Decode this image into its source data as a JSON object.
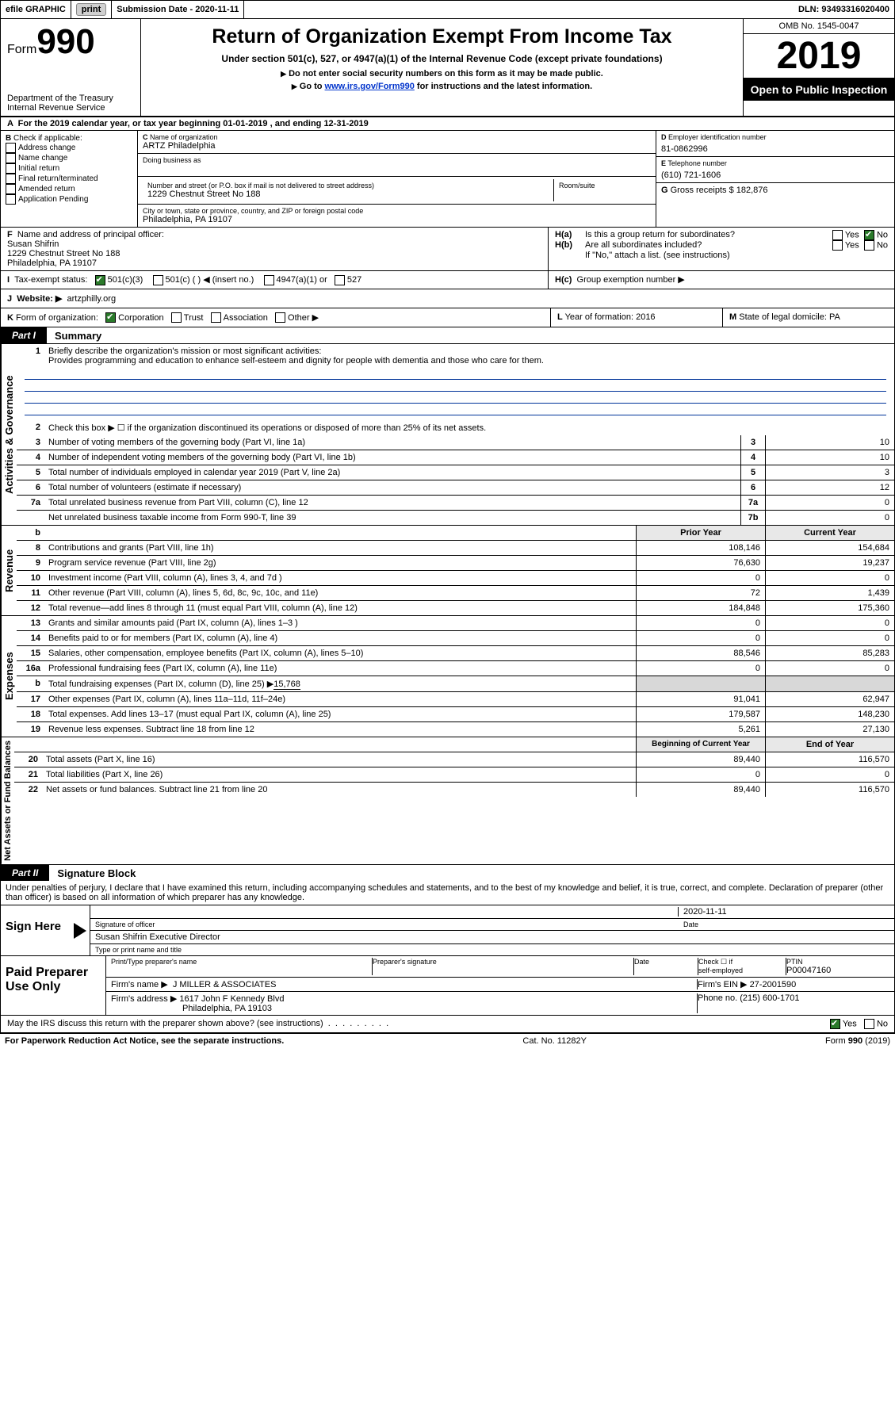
{
  "topbar": {
    "efile": "efile GRAPHIC",
    "print": "print",
    "submission_label": "Submission Date - ",
    "submission_date": "2020-11-11",
    "dln_label": "DLN: ",
    "dln": "93493316020400"
  },
  "header": {
    "form_prefix": "Form",
    "form_number": "990",
    "dept": "Department of the Treasury",
    "irs": "Internal Revenue Service",
    "title": "Return of Organization Exempt From Income Tax",
    "subtitle": "Under section 501(c), 527, or 4947(a)(1) of the Internal Revenue Code (except private foundations)",
    "note1": "Do not enter social security numbers on this form as it may be made public.",
    "note2_pre": "Go to ",
    "note2_link": "www.irs.gov/Form990",
    "note2_post": " for instructions and the latest information.",
    "omb": "OMB No. 1545-0047",
    "year": "2019",
    "open": "Open to Public Inspection"
  },
  "a": {
    "text_pre": "For the 2019 calendar year, or tax year beginning ",
    "begin": "01-01-2019",
    "mid": " , and ending ",
    "end": "12-31-2019"
  },
  "b": {
    "label": "Check if applicable:",
    "opts": [
      "Address change",
      "Name change",
      "Initial return",
      "Final return/terminated",
      "Amended return",
      "Application Pending"
    ]
  },
  "c": {
    "name_label": "Name of organization",
    "name": "ARTZ Philadelphia",
    "dba_label": "Doing business as",
    "addr_label": "Number and street (or P.O. box if mail is not delivered to street address)",
    "room_label": "Room/suite",
    "addr": "1229 Chestnut Street No 188",
    "city_label": "City or town, state or province, country, and ZIP or foreign postal code",
    "city": "Philadelphia, PA  19107"
  },
  "d": {
    "label": "Employer identification number",
    "val": "81-0862996"
  },
  "e": {
    "label": "Telephone number",
    "val": "(610) 721-1606"
  },
  "g": {
    "label": "Gross receipts $ ",
    "val": "182,876"
  },
  "f": {
    "label": "Name and address of principal officer:",
    "name": "Susan Shifrin",
    "addr1": "1229 Chestnut Street No 188",
    "addr2": "Philadelphia, PA  19107"
  },
  "h": {
    "a": "Is this a group return for subordinates?",
    "b": "Are all subordinates included?",
    "b_note": "If \"No,\" attach a list. (see instructions)",
    "c": "Group exemption number ▶",
    "yes": "Yes",
    "no": "No"
  },
  "i": {
    "label": "Tax-exempt status:",
    "o1": "501(c)(3)",
    "o2": "501(c) (   ) ◀ (insert no.)",
    "o3": "4947(a)(1) or",
    "o4": "527"
  },
  "j": {
    "label": "Website: ▶",
    "val": "artzphilly.org"
  },
  "k": {
    "label": "Form of organization:",
    "o1": "Corporation",
    "o2": "Trust",
    "o3": "Association",
    "o4": "Other ▶"
  },
  "l": {
    "label": "Year of formation: ",
    "val": "2016"
  },
  "m": {
    "label": "State of legal domicile: ",
    "val": "PA"
  },
  "part1": {
    "tag": "Part I",
    "title": "Summary",
    "l1_label": "Briefly describe the organization's mission or most significant activities:",
    "l1_text": "Provides programming and education to enhance self-esteem and dignity for people with dementia and those who care for them.",
    "l2": "Check this box ▶ ☐  if the organization discontinued its operations or disposed of more than 25% of its net assets.",
    "sec_gov": "Activities & Governance",
    "sec_rev": "Revenue",
    "sec_exp": "Expenses",
    "sec_net": "Net Assets or Fund Balances",
    "hdr_prior": "Prior Year",
    "hdr_curr": "Current Year",
    "hdr_boy": "Beginning of Current Year",
    "hdr_eoy": "End of Year",
    "rows_gov": [
      {
        "n": "3",
        "d": "Number of voting members of the governing body (Part VI, line 1a)",
        "r": "3",
        "v": "10"
      },
      {
        "n": "4",
        "d": "Number of independent voting members of the governing body (Part VI, line 1b)",
        "r": "4",
        "v": "10"
      },
      {
        "n": "5",
        "d": "Total number of individuals employed in calendar year 2019 (Part V, line 2a)",
        "r": "5",
        "v": "3"
      },
      {
        "n": "6",
        "d": "Total number of volunteers (estimate if necessary)",
        "r": "6",
        "v": "12"
      },
      {
        "n": "7a",
        "d": "Total unrelated business revenue from Part VIII, column (C), line 12",
        "r": "7a",
        "v": "0"
      },
      {
        "n": "",
        "d": "Net unrelated business taxable income from Form 990-T, line 39",
        "r": "7b",
        "v": "0"
      }
    ],
    "rows_rev": [
      {
        "n": "8",
        "d": "Contributions and grants (Part VIII, line 1h)",
        "p": "108,146",
        "c": "154,684"
      },
      {
        "n": "9",
        "d": "Program service revenue (Part VIII, line 2g)",
        "p": "76,630",
        "c": "19,237"
      },
      {
        "n": "10",
        "d": "Investment income (Part VIII, column (A), lines 3, 4, and 7d )",
        "p": "0",
        "c": "0"
      },
      {
        "n": "11",
        "d": "Other revenue (Part VIII, column (A), lines 5, 6d, 8c, 9c, 10c, and 11e)",
        "p": "72",
        "c": "1,439"
      },
      {
        "n": "12",
        "d": "Total revenue—add lines 8 through 11 (must equal Part VIII, column (A), line 12)",
        "p": "184,848",
        "c": "175,360"
      }
    ],
    "rows_exp": [
      {
        "n": "13",
        "d": "Grants and similar amounts paid (Part IX, column (A), lines 1–3 )",
        "p": "0",
        "c": "0"
      },
      {
        "n": "14",
        "d": "Benefits paid to or for members (Part IX, column (A), line 4)",
        "p": "0",
        "c": "0"
      },
      {
        "n": "15",
        "d": "Salaries, other compensation, employee benefits (Part IX, column (A), lines 5–10)",
        "p": "88,546",
        "c": "85,283"
      },
      {
        "n": "16a",
        "d": "Professional fundraising fees (Part IX, column (A), line 11e)",
        "p": "0",
        "c": "0"
      }
    ],
    "row_16b": {
      "n": "b",
      "d": "Total fundraising expenses (Part IX, column (D), line 25) ▶",
      "v": "15,768"
    },
    "rows_exp2": [
      {
        "n": "17",
        "d": "Other expenses (Part IX, column (A), lines 11a–11d, 11f–24e)",
        "p": "91,041",
        "c": "62,947"
      },
      {
        "n": "18",
        "d": "Total expenses. Add lines 13–17 (must equal Part IX, column (A), line 25)",
        "p": "179,587",
        "c": "148,230"
      },
      {
        "n": "19",
        "d": "Revenue less expenses. Subtract line 18 from line 12",
        "p": "5,261",
        "c": "27,130"
      }
    ],
    "rows_net": [
      {
        "n": "20",
        "d": "Total assets (Part X, line 16)",
        "p": "89,440",
        "c": "116,570"
      },
      {
        "n": "21",
        "d": "Total liabilities (Part X, line 26)",
        "p": "0",
        "c": "0"
      },
      {
        "n": "22",
        "d": "Net assets or fund balances. Subtract line 21 from line 20",
        "p": "89,440",
        "c": "116,570"
      }
    ]
  },
  "part2": {
    "tag": "Part II",
    "title": "Signature Block",
    "perjury": "Under penalties of perjury, I declare that I have examined this return, including accompanying schedules and statements, and to the best of my knowledge and belief, it is true, correct, and complete. Declaration of preparer (other than officer) is based on all information of which preparer has any knowledge.",
    "sign_here": "Sign Here",
    "sig_officer": "Signature of officer",
    "date_label": "Date",
    "date": "2020-11-11",
    "name_title": "Susan Shifrin  Executive Director",
    "name_title_label": "Type or print name and title",
    "paid": "Paid Preparer Use Only",
    "prep_name_label": "Print/Type preparer's name",
    "prep_sig_label": "Preparer's signature",
    "self_emp": "self-employed",
    "check_if": "Check ☐ if",
    "ptin_label": "PTIN",
    "ptin": "P00047160",
    "firm_name_label": "Firm's name   ▶",
    "firm_name": "J MILLER & ASSOCIATES",
    "firm_ein_label": "Firm's EIN ▶",
    "firm_ein": "27-2001590",
    "firm_addr_label": "Firm's address ▶",
    "firm_addr1": "1617 John F Kennedy Blvd",
    "firm_addr2": "Philadelphia, PA  19103",
    "phone_label": "Phone no. ",
    "phone": "(215) 600-1701",
    "discuss": "May the IRS discuss this return with the preparer shown above? (see instructions)",
    "yes": "Yes",
    "no": "No"
  },
  "footer": {
    "left": "For Paperwork Reduction Act Notice, see the separate instructions.",
    "mid": "Cat. No. 11282Y",
    "right": "Form 990 (2019)"
  }
}
